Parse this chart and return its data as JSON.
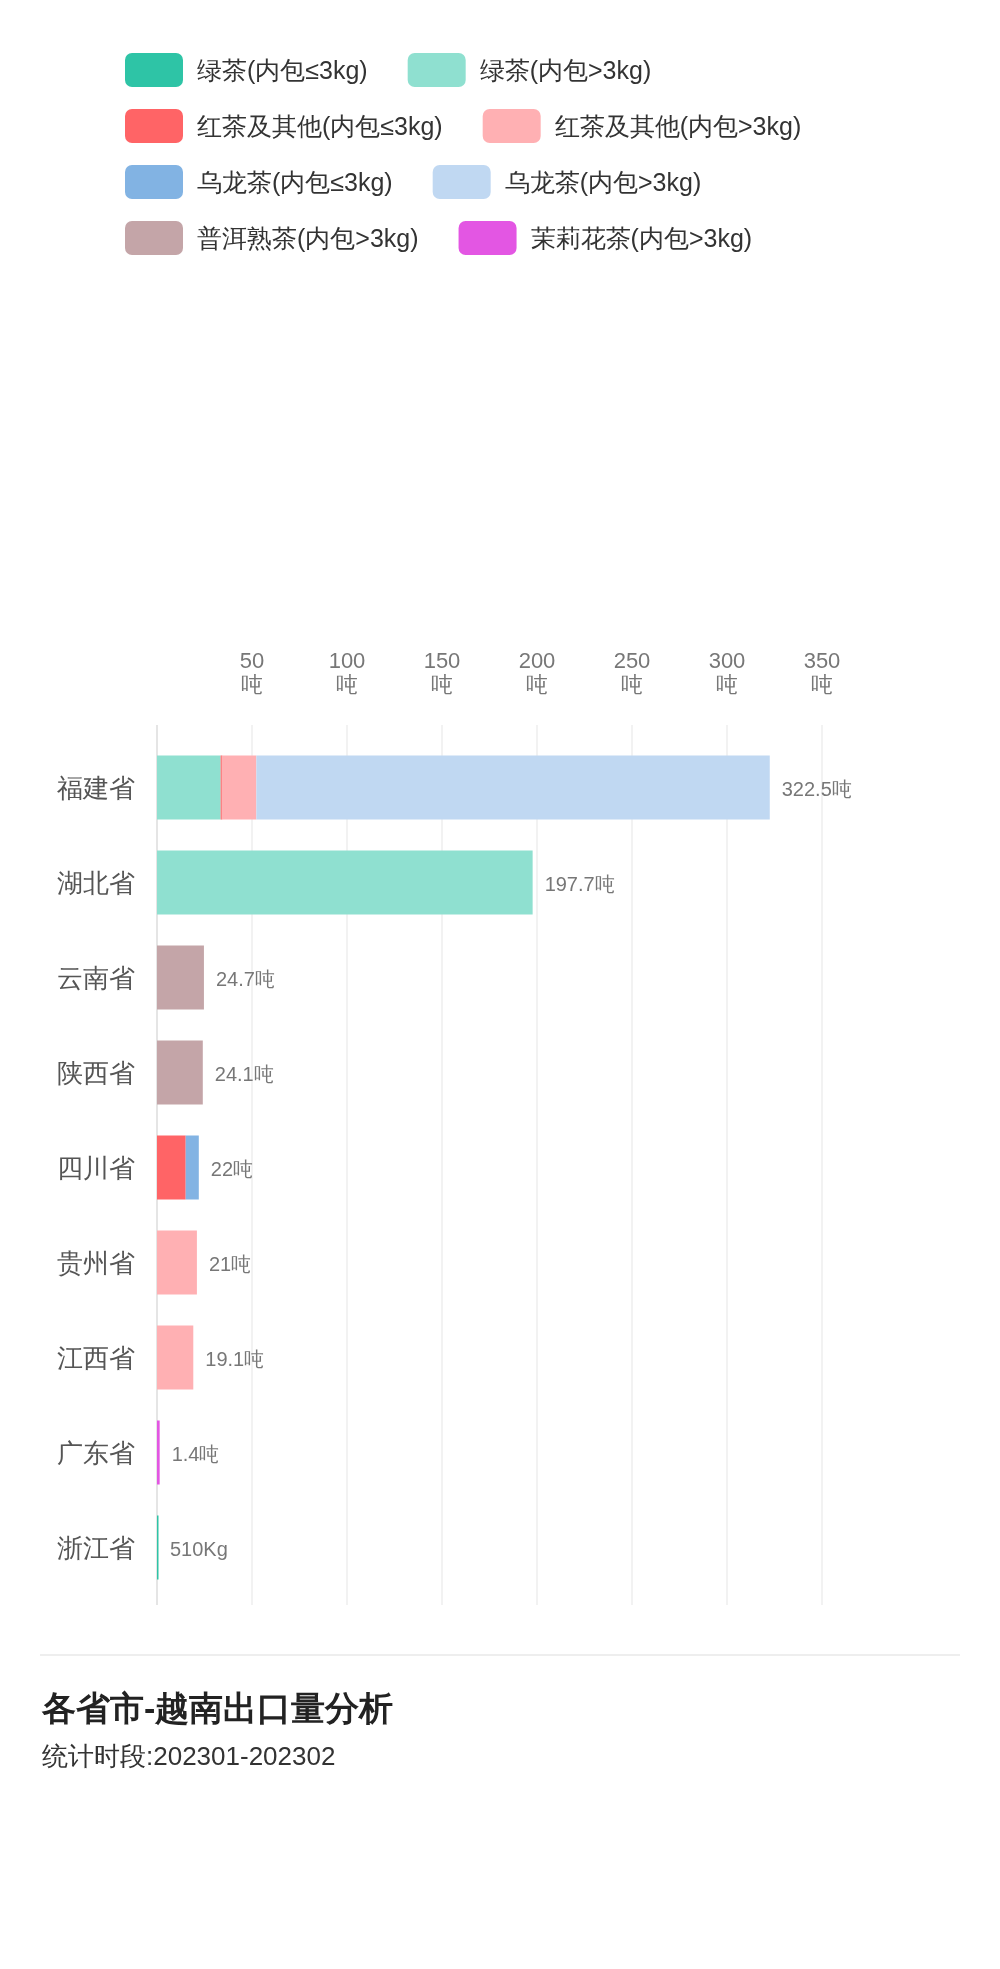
{
  "chart_data": {
    "type": "bar",
    "orientation": "horizontal",
    "stacked": true,
    "title": "各省市-越南出口量分析",
    "subtitle": "统计时段:202301-202302",
    "categories": [
      "福建省",
      "湖北省",
      "云南省",
      "陕西省",
      "四川省",
      "贵州省",
      "江西省",
      "广东省",
      "浙江省"
    ],
    "series": [
      {
        "name": "绿茶(内包≤3kg)",
        "color": "#2ec4a6",
        "values": [
          null,
          null,
          null,
          null,
          null,
          null,
          null,
          null,
          0.51
        ]
      },
      {
        "name": "绿茶(内包>3kg)",
        "color": "#8fe0d0",
        "values": [
          33.5,
          197.7,
          null,
          null,
          null,
          null,
          null,
          null,
          null
        ]
      },
      {
        "name": "红茶及其他(内包≤3kg)",
        "color": "#ff6466",
        "values": [
          0.5,
          null,
          null,
          null,
          15.1,
          null,
          null,
          null,
          null
        ]
      },
      {
        "name": "红茶及其他(内包>3kg)",
        "color": "#ffb0b3",
        "values": [
          18.3,
          null,
          null,
          null,
          null,
          21,
          19.1,
          null,
          null
        ]
      },
      {
        "name": "乌龙茶(内包≤3kg)",
        "color": "#82b3e3",
        "values": [
          null,
          null,
          null,
          null,
          6.9,
          null,
          null,
          null,
          null
        ]
      },
      {
        "name": "乌龙茶(内包>3kg)",
        "color": "#c0d8f2",
        "values": [
          270.2,
          null,
          null,
          null,
          null,
          null,
          null,
          null,
          null
        ]
      },
      {
        "name": "普洱熟茶(内包>3kg)",
        "color": "#c4a5a8",
        "values": [
          null,
          null,
          24.7,
          24.1,
          null,
          null,
          null,
          null,
          null
        ]
      },
      {
        "name": "茉莉花茶(内包>3kg)",
        "color": "#e356e3",
        "values": [
          null,
          null,
          null,
          null,
          null,
          null,
          null,
          1.4,
          null
        ]
      }
    ],
    "totals": [
      "322.5吨",
      "197.7吨",
      "24.7吨",
      "24.1吨",
      "22吨",
      "21吨",
      "19.1吨",
      "1.4吨",
      "510Kg"
    ],
    "xlim": [
      0,
      350
    ],
    "xticks": [
      {
        "value": 50,
        "label": "50\n吨"
      },
      {
        "value": 100,
        "label": "100\n吨"
      },
      {
        "value": 150,
        "label": "150\n吨"
      },
      {
        "value": 200,
        "label": "200\n吨"
      },
      {
        "value": 250,
        "label": "250\n吨"
      },
      {
        "value": 300,
        "label": "300\n吨"
      },
      {
        "value": 350,
        "label": "350\n吨"
      }
    ],
    "grid": "x",
    "legend": "top"
  }
}
